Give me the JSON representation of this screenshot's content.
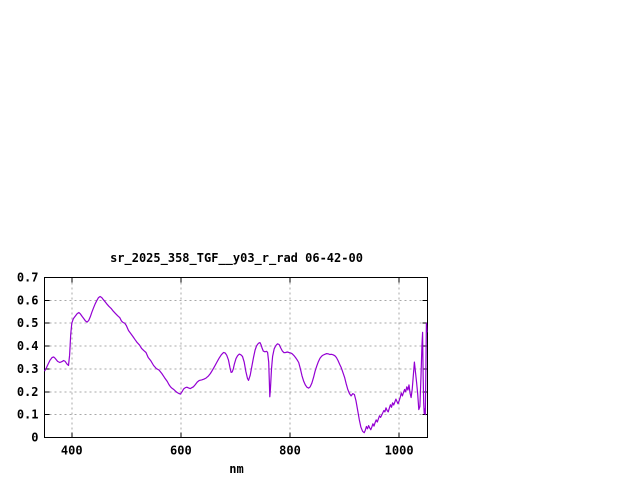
{
  "window": {
    "background_color": "#ffffff"
  },
  "chart_data": {
    "type": "line",
    "title": "sr_2025_358_TGF__y03_r_rad 06-42-00",
    "xlabel": "nm",
    "ylabel": "",
    "xlim": [
      350,
      1052
    ],
    "ylim": [
      0,
      0.7
    ],
    "x_ticks": [
      400,
      600,
      800,
      1000
    ],
    "x_tick_labels": [
      "400",
      "600",
      "800",
      "1000"
    ],
    "y_ticks": [
      0,
      0.1,
      0.2,
      0.3,
      0.4,
      0.5,
      0.6,
      0.7
    ],
    "y_tick_labels": [
      "0",
      "0.1",
      "0.2",
      "0.3",
      "0.4",
      "0.5",
      "0.6",
      "0.7"
    ],
    "grid": true,
    "legend": "none",
    "colors": {
      "line": "#9400d3",
      "grid": "#a8a8a8",
      "axis": "#000000",
      "text": "#000000",
      "background": "#ffffff"
    },
    "series": [
      {
        "name": "sr_2025_358_TGF__y03_r_rad",
        "points": [
          [
            350,
            0.29
          ],
          [
            353,
            0.302
          ],
          [
            356,
            0.318
          ],
          [
            360,
            0.338
          ],
          [
            364,
            0.35
          ],
          [
            367,
            0.352
          ],
          [
            370,
            0.345
          ],
          [
            374,
            0.333
          ],
          [
            378,
            0.328
          ],
          [
            382,
            0.332
          ],
          [
            385,
            0.337
          ],
          [
            388,
            0.333
          ],
          [
            391,
            0.322
          ],
          [
            394,
            0.315
          ],
          [
            396,
            0.36
          ],
          [
            398,
            0.45
          ],
          [
            400,
            0.5
          ],
          [
            403,
            0.52
          ],
          [
            406,
            0.53
          ],
          [
            410,
            0.542
          ],
          [
            413,
            0.547
          ],
          [
            416,
            0.54
          ],
          [
            419,
            0.53
          ],
          [
            422,
            0.52
          ],
          [
            425,
            0.51
          ],
          [
            428,
            0.505
          ],
          [
            431,
            0.512
          ],
          [
            434,
            0.528
          ],
          [
            437,
            0.55
          ],
          [
            440,
            0.568
          ],
          [
            443,
            0.585
          ],
          [
            446,
            0.6
          ],
          [
            449,
            0.612
          ],
          [
            452,
            0.617
          ],
          [
            455,
            0.612
          ],
          [
            458,
            0.603
          ],
          [
            461,
            0.594
          ],
          [
            464,
            0.585
          ],
          [
            468,
            0.574
          ],
          [
            472,
            0.565
          ],
          [
            476,
            0.553
          ],
          [
            480,
            0.543
          ],
          [
            484,
            0.533
          ],
          [
            488,
            0.524
          ],
          [
            491,
            0.51
          ],
          [
            494,
            0.503
          ],
          [
            497,
            0.5
          ],
          [
            500,
            0.49
          ],
          [
            504,
            0.468
          ],
          [
            508,
            0.455
          ],
          [
            512,
            0.442
          ],
          [
            516,
            0.428
          ],
          [
            520,
            0.415
          ],
          [
            524,
            0.405
          ],
          [
            528,
            0.39
          ],
          [
            532,
            0.38
          ],
          [
            536,
            0.372
          ],
          [
            540,
            0.35
          ],
          [
            545,
            0.335
          ],
          [
            550,
            0.315
          ],
          [
            555,
            0.302
          ],
          [
            560,
            0.295
          ],
          [
            565,
            0.28
          ],
          [
            570,
            0.262
          ],
          [
            575,
            0.245
          ],
          [
            578,
            0.232
          ],
          [
            581,
            0.222
          ],
          [
            584,
            0.215
          ],
          [
            587,
            0.21
          ],
          [
            590,
            0.203
          ],
          [
            593,
            0.197
          ],
          [
            596,
            0.193
          ],
          [
            599,
            0.19
          ],
          [
            602,
            0.2
          ],
          [
            605,
            0.212
          ],
          [
            608,
            0.218
          ],
          [
            611,
            0.22
          ],
          [
            614,
            0.217
          ],
          [
            617,
            0.214
          ],
          [
            620,
            0.218
          ],
          [
            623,
            0.222
          ],
          [
            626,
            0.23
          ],
          [
            630,
            0.243
          ],
          [
            634,
            0.25
          ],
          [
            638,
            0.252
          ],
          [
            642,
            0.255
          ],
          [
            646,
            0.26
          ],
          [
            650,
            0.268
          ],
          [
            654,
            0.28
          ],
          [
            658,
            0.295
          ],
          [
            662,
            0.312
          ],
          [
            666,
            0.33
          ],
          [
            670,
            0.347
          ],
          [
            674,
            0.362
          ],
          [
            678,
            0.372
          ],
          [
            681,
            0.37
          ],
          [
            684,
            0.36
          ],
          [
            687,
            0.34
          ],
          [
            690,
            0.305
          ],
          [
            692,
            0.285
          ],
          [
            694,
            0.287
          ],
          [
            696,
            0.3
          ],
          [
            698,
            0.322
          ],
          [
            701,
            0.345
          ],
          [
            704,
            0.358
          ],
          [
            707,
            0.365
          ],
          [
            710,
            0.362
          ],
          [
            713,
            0.355
          ],
          [
            716,
            0.33
          ],
          [
            719,
            0.29
          ],
          [
            722,
            0.258
          ],
          [
            724,
            0.25
          ],
          [
            727,
            0.272
          ],
          [
            730,
            0.31
          ],
          [
            733,
            0.35
          ],
          [
            736,
            0.383
          ],
          [
            739,
            0.402
          ],
          [
            742,
            0.412
          ],
          [
            745,
            0.415
          ],
          [
            747,
            0.405
          ],
          [
            749,
            0.39
          ],
          [
            751,
            0.378
          ],
          [
            754,
            0.375
          ],
          [
            757,
            0.377
          ],
          [
            759,
            0.372
          ],
          [
            761,
            0.33
          ],
          [
            762,
            0.25
          ],
          [
            763,
            0.178
          ],
          [
            764,
            0.21
          ],
          [
            766,
            0.3
          ],
          [
            768,
            0.355
          ],
          [
            771,
            0.388
          ],
          [
            774,
            0.402
          ],
          [
            777,
            0.41
          ],
          [
            780,
            0.407
          ],
          [
            783,
            0.392
          ],
          [
            786,
            0.378
          ],
          [
            789,
            0.371
          ],
          [
            792,
            0.372
          ],
          [
            795,
            0.374
          ],
          [
            798,
            0.372
          ],
          [
            801,
            0.37
          ],
          [
            804,
            0.366
          ],
          [
            807,
            0.359
          ],
          [
            810,
            0.35
          ],
          [
            813,
            0.34
          ],
          [
            816,
            0.328
          ],
          [
            819,
            0.3
          ],
          [
            822,
            0.27
          ],
          [
            825,
            0.246
          ],
          [
            828,
            0.23
          ],
          [
            831,
            0.22
          ],
          [
            834,
            0.216
          ],
          [
            837,
            0.222
          ],
          [
            840,
            0.237
          ],
          [
            843,
            0.262
          ],
          [
            846,
            0.29
          ],
          [
            849,
            0.312
          ],
          [
            852,
            0.332
          ],
          [
            855,
            0.347
          ],
          [
            858,
            0.356
          ],
          [
            861,
            0.361
          ],
          [
            864,
            0.364
          ],
          [
            867,
            0.367
          ],
          [
            870,
            0.366
          ],
          [
            873,
            0.363
          ],
          [
            876,
            0.364
          ],
          [
            879,
            0.362
          ],
          [
            882,
            0.358
          ],
          [
            885,
            0.35
          ],
          [
            888,
            0.337
          ],
          [
            891,
            0.32
          ],
          [
            894,
            0.305
          ],
          [
            897,
            0.285
          ],
          [
            900,
            0.263
          ],
          [
            903,
            0.235
          ],
          [
            906,
            0.21
          ],
          [
            909,
            0.192
          ],
          [
            912,
            0.182
          ],
          [
            915,
            0.192
          ],
          [
            918,
            0.188
          ],
          [
            921,
            0.16
          ],
          [
            924,
            0.118
          ],
          [
            927,
            0.078
          ],
          [
            930,
            0.045
          ],
          [
            933,
            0.027
          ],
          [
            936,
            0.021
          ],
          [
            938,
            0.032
          ],
          [
            940,
            0.048
          ],
          [
            942,
            0.038
          ],
          [
            944,
            0.052
          ],
          [
            946,
            0.042
          ],
          [
            948,
            0.034
          ],
          [
            950,
            0.047
          ],
          [
            952,
            0.06
          ],
          [
            954,
            0.05
          ],
          [
            956,
            0.065
          ],
          [
            958,
            0.077
          ],
          [
            960,
            0.068
          ],
          [
            962,
            0.082
          ],
          [
            964,
            0.095
          ],
          [
            966,
            0.088
          ],
          [
            968,
            0.098
          ],
          [
            970,
            0.108
          ],
          [
            972,
            0.118
          ],
          [
            974,
            0.112
          ],
          [
            976,
            0.13
          ],
          [
            978,
            0.118
          ],
          [
            980,
            0.112
          ],
          [
            982,
            0.128
          ],
          [
            984,
            0.143
          ],
          [
            986,
            0.132
          ],
          [
            988,
            0.152
          ],
          [
            990,
            0.142
          ],
          [
            992,
            0.155
          ],
          [
            994,
            0.168
          ],
          [
            996,
            0.158
          ],
          [
            998,
            0.148
          ],
          [
            1000,
            0.16
          ],
          [
            1002,
            0.175
          ],
          [
            1004,
            0.195
          ],
          [
            1006,
            0.182
          ],
          [
            1008,
            0.197
          ],
          [
            1010,
            0.21
          ],
          [
            1012,
            0.2
          ],
          [
            1014,
            0.222
          ],
          [
            1016,
            0.208
          ],
          [
            1018,
            0.23
          ],
          [
            1020,
            0.195
          ],
          [
            1022,
            0.175
          ],
          [
            1024,
            0.21
          ],
          [
            1026,
            0.27
          ],
          [
            1028,
            0.33
          ],
          [
            1030,
            0.285
          ],
          [
            1032,
            0.24
          ],
          [
            1034,
            0.19
          ],
          [
            1036,
            0.122
          ],
          [
            1038,
            0.135
          ],
          [
            1040,
            0.27
          ],
          [
            1042,
            0.41
          ],
          [
            1043,
            0.46
          ],
          [
            1044,
            0.28
          ],
          [
            1045,
            0.15
          ],
          [
            1046,
            0.105
          ],
          [
            1047,
            0.125
          ],
          [
            1048,
            0.1
          ],
          [
            1049,
            0.3
          ],
          [
            1050,
            0.5
          ],
          [
            1051,
            0.46
          ]
        ]
      }
    ]
  }
}
